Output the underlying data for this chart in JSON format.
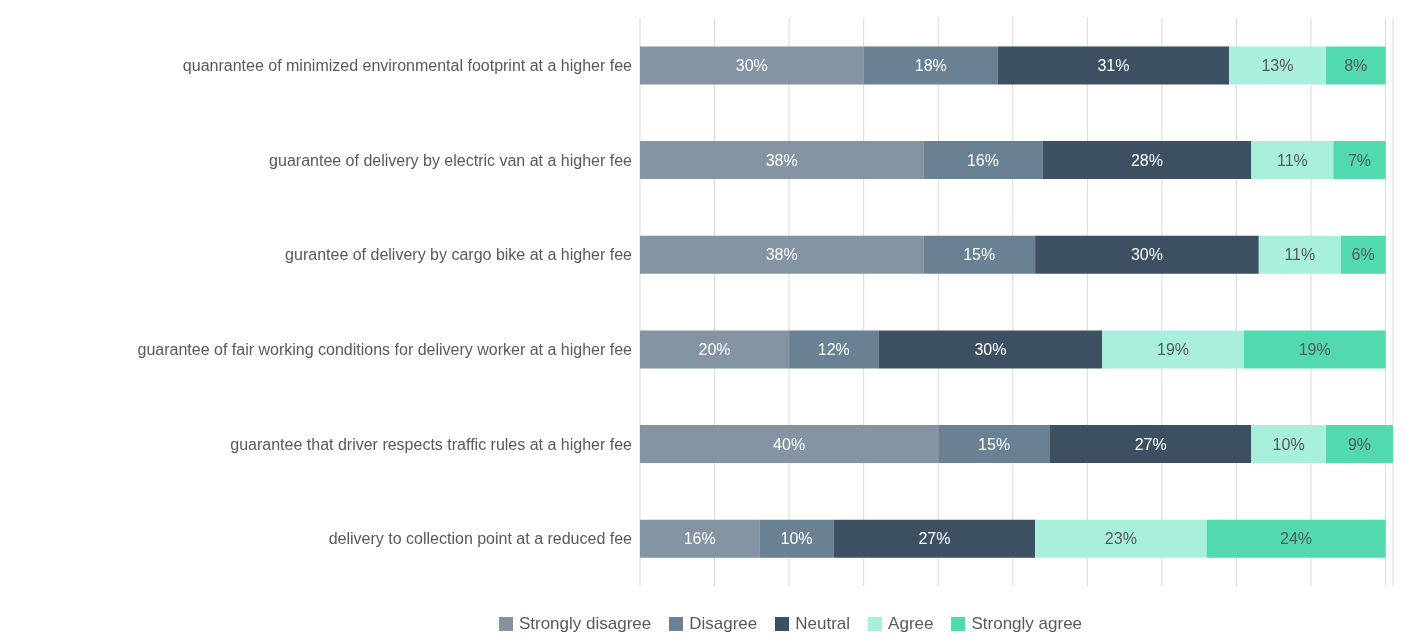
{
  "chart_data": {
    "type": "bar",
    "orientation": "horizontal",
    "stacked": true,
    "categories": [
      "quanrantee of minimized environmental footprint at a higher fee",
      "guarantee of delivery by electric van at a higher fee",
      "gurantee of delivery by cargo bike at a higher fee",
      "guarantee of fair working conditions for delivery worker at a higher fee",
      "guarantee that driver respects traffic rules at a higher fee",
      "delivery to collection point at a reduced fee"
    ],
    "series": [
      {
        "name": "Strongly disagree",
        "color": "#8494a2",
        "values": [
          30,
          38,
          38,
          20,
          40,
          16
        ],
        "value_labels": [
          "30%",
          "38%",
          "38%",
          "20%",
          "40%",
          "16%"
        ]
      },
      {
        "name": "Disagree",
        "color": "#6a8093",
        "values": [
          18,
          16,
          15,
          12,
          15,
          10
        ],
        "value_labels": [
          "18%",
          "16%",
          "15%",
          "12%",
          "15%",
          "10%"
        ]
      },
      {
        "name": "Neutral",
        "color": "#3d5061",
        "values": [
          31,
          28,
          30,
          30,
          27,
          27
        ],
        "value_labels": [
          "31%",
          "28%",
          "30%",
          "30%",
          "27%",
          "27%"
        ]
      },
      {
        "name": "Agree",
        "color": "#a9f0dc",
        "values": [
          13,
          11,
          11,
          19,
          10,
          23
        ],
        "value_labels": [
          "13%",
          "11%",
          "11%",
          "19%",
          "10%",
          "23%"
        ]
      },
      {
        "name": "Strongly agree",
        "color": "#52d9b0",
        "values": [
          8,
          7,
          6,
          19,
          9,
          24
        ],
        "value_labels": [
          "8%",
          "7%",
          "6%",
          "19%",
          "9%",
          "24%"
        ]
      }
    ],
    "xlim": [
      0,
      101
    ],
    "xticks": [
      {
        "value": 0,
        "label": null
      },
      {
        "value": 10,
        "label": null
      },
      {
        "value": 20,
        "label": null
      },
      {
        "value": 30,
        "label": null
      },
      {
        "value": 40,
        "label": null
      },
      {
        "value": 50,
        "label": null
      },
      {
        "value": 60,
        "label": null
      },
      {
        "value": 70,
        "label": null
      },
      {
        "value": 80,
        "label": null
      },
      {
        "value": 90,
        "label": null
      },
      {
        "value": 100,
        "label": null
      }
    ],
    "grid": "x",
    "tick_labels": "y",
    "legend": "bottom"
  }
}
